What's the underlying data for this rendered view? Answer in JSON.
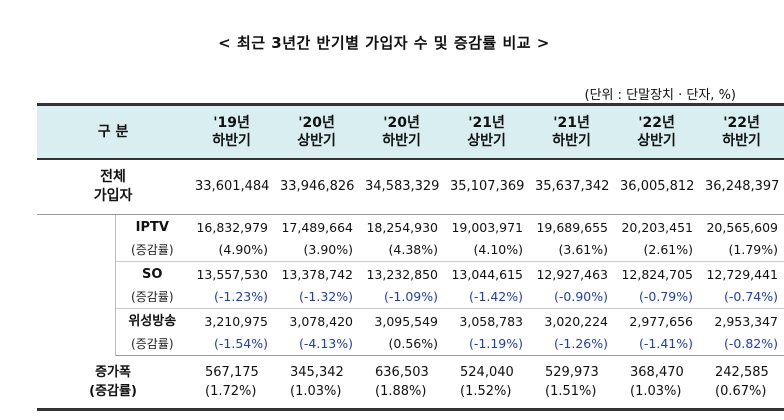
{
  "title": "< 최근 3년간 반기별 가입자 수 및 증감률 비교 >",
  "unit": "(단위 : 단말장치 · 단자, %)",
  "header": {
    "first": "구   분",
    "periods": [
      {
        "year": "'19년",
        "half": "하반기"
      },
      {
        "year": "'20년",
        "half": "상반기"
      },
      {
        "year": "'20년",
        "half": "하반기"
      },
      {
        "year": "'21년",
        "half": "상반기"
      },
      {
        "year": "'21년",
        "half": "하반기"
      },
      {
        "year": "'22년",
        "half": "상반기"
      },
      {
        "year": "'22년",
        "half": "하반기"
      }
    ]
  },
  "total": {
    "label_line1": "전체",
    "label_line2": "가입자",
    "values": [
      "33,601,484",
      "33,946,826",
      "34,583,329",
      "35,107,369",
      "35,637,342",
      "36,005,812",
      "36,248,397"
    ]
  },
  "items": [
    {
      "name": "IPTV",
      "sub": "(증감률)",
      "values": [
        "16,832,979",
        "17,489,664",
        "18,254,930",
        "19,003,971",
        "19,689,655",
        "20,203,451",
        "20,565,609"
      ],
      "rates": [
        "(4.90%)",
        "(3.90%)",
        "(4.38%)",
        "(4.10%)",
        "(3.61%)",
        "(2.61%)",
        "(1.79%)"
      ],
      "rates_blue": [
        false,
        false,
        false,
        false,
        false,
        false,
        false
      ]
    },
    {
      "name": "SO",
      "sub": "(증감률)",
      "values": [
        "13,557,530",
        "13,378,742",
        "13,232,850",
        "13,044,615",
        "12,927,463",
        "12,824,705",
        "12,729,441"
      ],
      "rates": [
        "(-1.23%)",
        "(-1.32%)",
        "(-1.09%)",
        "(-1.42%)",
        "(-0.90%)",
        "(-0.79%)",
        "(-0.74%)"
      ],
      "rates_blue": [
        true,
        true,
        true,
        true,
        true,
        true,
        true
      ]
    },
    {
      "name": "위성방송",
      "sub": "(증감률)",
      "values": [
        "3,210,975",
        "3,078,420",
        "3,095,549",
        "3,058,783",
        "3,020,224",
        "2,977,656",
        "2,953,347"
      ],
      "rates": [
        "(-1.54%)",
        "(-4.13%)",
        "(0.56%)",
        "(-1.19%)",
        "(-1.26%)",
        "(-1.41%)",
        "(-0.82%)"
      ],
      "rates_blue": [
        true,
        true,
        false,
        true,
        true,
        true,
        true
      ]
    }
  ],
  "increase": {
    "label_line1": "증가폭",
    "label_line2": "(증감률)",
    "values": [
      "567,175",
      "345,342",
      "636,503",
      "524,040",
      "529,973",
      "368,470",
      "242,585"
    ],
    "rates": [
      "(1.72%)",
      "(1.03%)",
      "(1.88%)",
      "(1.52%)",
      "(1.51%)",
      "(1.03%)",
      "(0.67%)"
    ]
  }
}
